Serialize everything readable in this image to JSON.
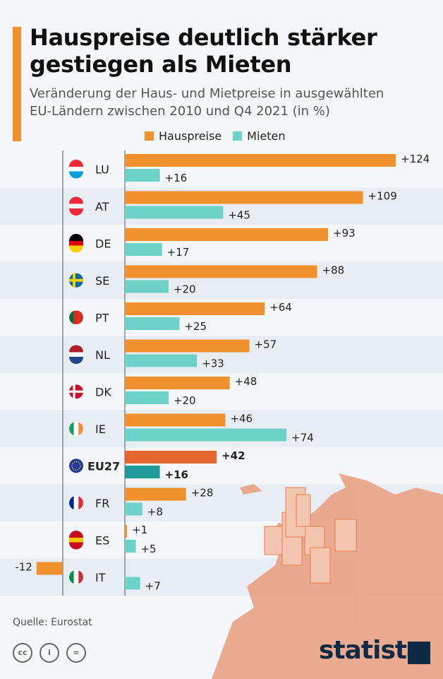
{
  "header": {
    "title_line1": "Hauspreise deutlich stärker",
    "title_line2": "gestiegen als Mieten",
    "subtitle_line1": "Veränderung der Haus- und Mietpreise in ausgewählten",
    "subtitle_line2": "EU-Ländern zwischen 2010 und Q4 2021 (in %)"
  },
  "footer": {
    "source": "Quelle: Eurostat",
    "brand": "statista",
    "license_icons": [
      "cc-icon",
      "attribution-icon",
      "no-derivatives-icon"
    ]
  },
  "colors": {
    "hauspreise": "#f0902e",
    "mieten": "#6dd1c8",
    "eu_hauspreise": "#e5652f",
    "eu_mieten": "#22999a",
    "row_shade": "#e8edf3",
    "map": "#eaa68a"
  },
  "chart_data": {
    "type": "bar",
    "orientation": "horizontal",
    "grid": false,
    "legend_position": "top",
    "categories": [
      "LU",
      "AT",
      "DE",
      "SE",
      "PT",
      "NL",
      "DK",
      "IE",
      "EU27",
      "FR",
      "ES",
      "IT"
    ],
    "series": [
      {
        "name": "Hauspreise",
        "values": [
          124,
          109,
          93,
          88,
          64,
          57,
          48,
          46,
          42,
          28,
          1,
          -12
        ]
      },
      {
        "name": "Mieten",
        "values": [
          16,
          45,
          17,
          20,
          25,
          33,
          20,
          74,
          16,
          8,
          5,
          7
        ]
      }
    ],
    "data_labels": [
      [
        "+124",
        "+109",
        "+93",
        "+88",
        "+64",
        "+57",
        "+48",
        "+46",
        "+42",
        "+28",
        "+1",
        "-12"
      ],
      [
        "+16",
        "+45",
        "+17",
        "+20",
        "+25",
        "+33",
        "+20",
        "+74",
        "+16",
        "+8",
        "+5",
        "+7"
      ]
    ],
    "highlight": "EU27"
  }
}
